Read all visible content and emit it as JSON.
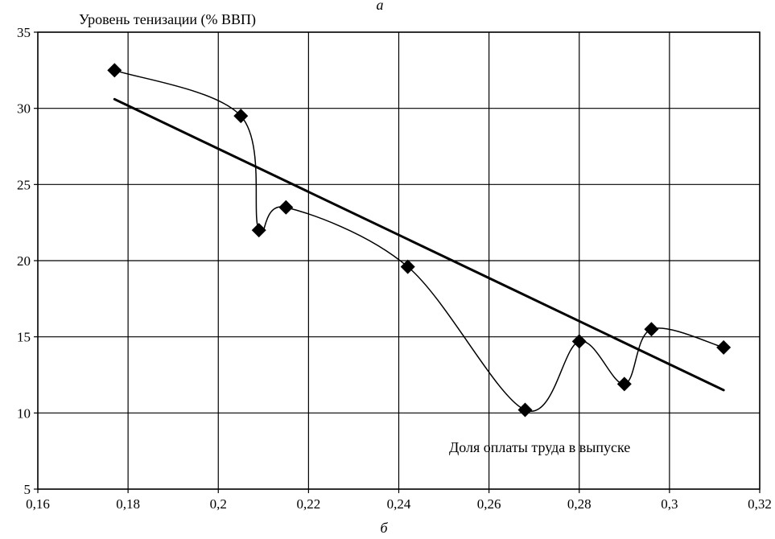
{
  "chart_data": {
    "type": "line",
    "figure_label_top": "а",
    "figure_label_bottom": "б",
    "ylabel": "Уровень тенизации (% ВВП)",
    "xlabel": "Доля оплаты труда в выпуске",
    "xlim": [
      0.16,
      0.32
    ],
    "ylim": [
      5,
      35
    ],
    "xticks": [
      0.16,
      0.18,
      0.2,
      0.22,
      0.24,
      0.26,
      0.28,
      0.3,
      0.32
    ],
    "xtick_labels": [
      "0,16",
      "0,18",
      "0,2",
      "0,22",
      "0,24",
      "0,26",
      "0,28",
      "0,3",
      "0,32"
    ],
    "yticks": [
      5,
      10,
      15,
      20,
      25,
      30,
      35
    ],
    "ytick_labels": [
      "5",
      "10",
      "15",
      "20",
      "25",
      "30",
      "35"
    ],
    "grid": true,
    "series": [
      {
        "kind": "smoothed-line-with-markers",
        "marker": "diamond",
        "x": [
          0.177,
          0.205,
          0.209,
          0.215,
          0.242,
          0.268,
          0.28,
          0.29,
          0.296,
          0.312
        ],
        "y": [
          32.5,
          29.5,
          22.0,
          23.5,
          19.6,
          10.2,
          14.7,
          11.9,
          15.5,
          14.3
        ]
      },
      {
        "kind": "trend-line",
        "x": [
          0.177,
          0.312
        ],
        "y": [
          30.6,
          11.5
        ]
      }
    ]
  }
}
